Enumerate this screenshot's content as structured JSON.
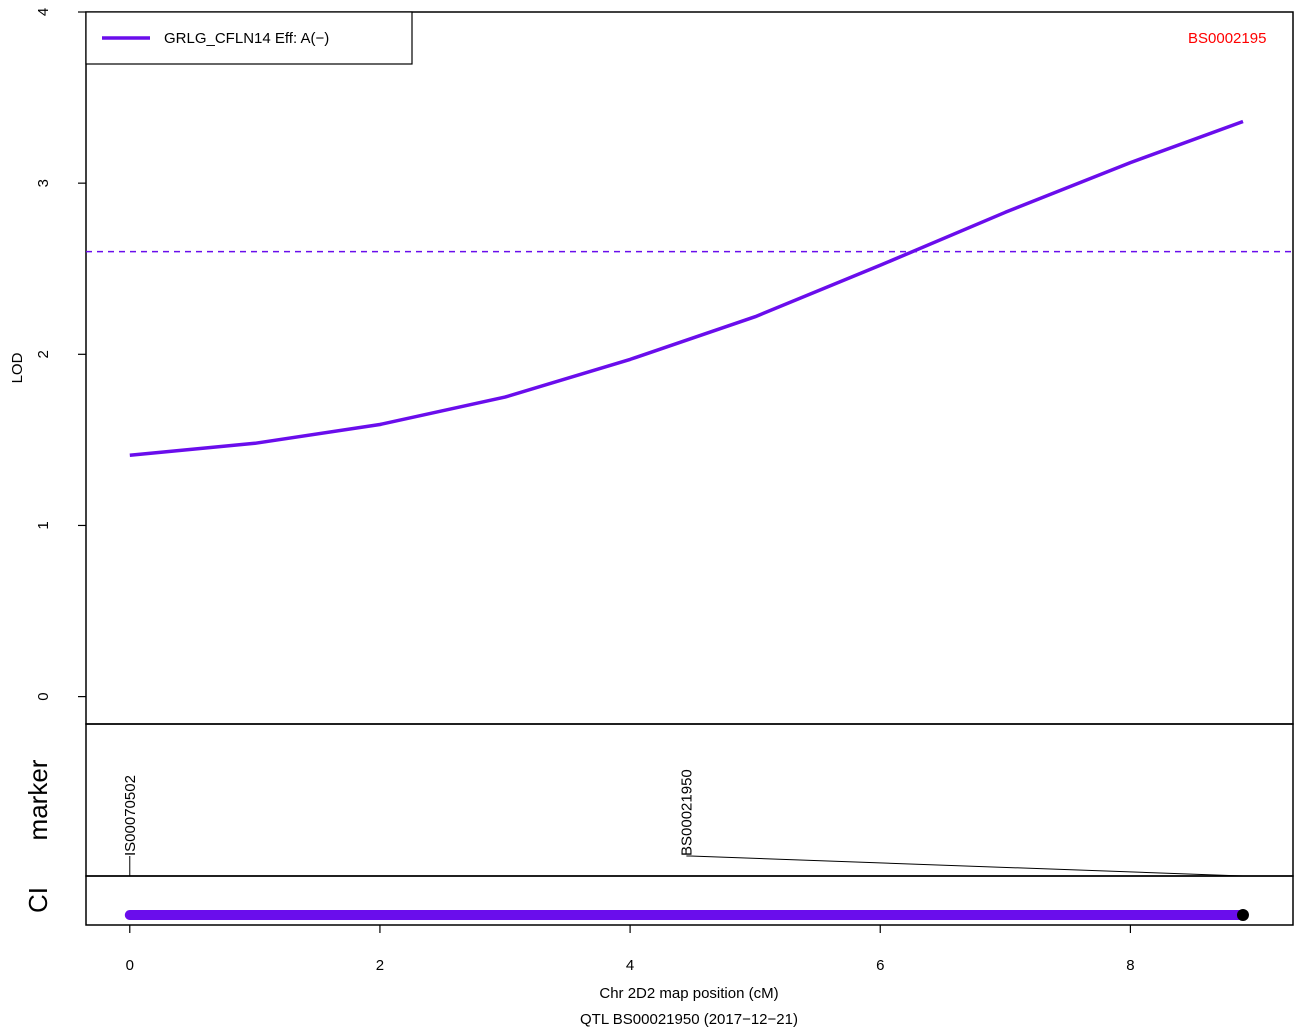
{
  "chart_data": {
    "type": "line",
    "xlabel": "Chr 2D2 map position (cM)",
    "subtitle": "QTL BS00021950 (2017−12−21)",
    "ylabel": "LOD",
    "xlim": [
      -0.35,
      9.3
    ],
    "ylim": [
      -0.16,
      4.0
    ],
    "x_ticks": [
      "0",
      "2",
      "4",
      "6",
      "8"
    ],
    "y_ticks": [
      "0",
      "1",
      "2",
      "3",
      "4"
    ],
    "threshold": 2.6,
    "series": [
      {
        "name": "GRLG_CFLN14 Eff: A(−)",
        "color": "#6a0dec",
        "x": [
          0,
          1,
          2,
          3,
          4,
          5,
          6,
          7,
          8,
          8.9
        ],
        "y": [
          1.41,
          1.48,
          1.59,
          1.75,
          1.97,
          2.22,
          2.52,
          2.83,
          3.12,
          3.36
        ]
      }
    ],
    "peak_marker_label": "BS0002195",
    "peak_marker_color": "#ff0000",
    "marker_track_label": "marker",
    "ci_track_label": "CI",
    "markers": [
      {
        "name": "IS00070502",
        "x": 0,
        "label_x": 0
      },
      {
        "name": "BS00021950",
        "x": 8.9,
        "label_x": 4.45
      }
    ],
    "ci": {
      "from": 0,
      "to": 8.9,
      "peak": 8.9
    }
  }
}
